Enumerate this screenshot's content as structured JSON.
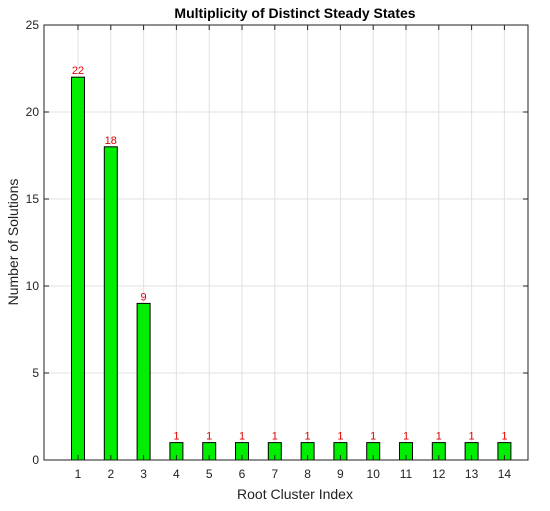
{
  "chart_data": {
    "type": "bar",
    "title": "Multiplicity of Distinct Steady States",
    "xlabel": "Root Cluster Index",
    "ylabel": "Number of Solutions",
    "categories": [
      "1",
      "2",
      "3",
      "4",
      "5",
      "6",
      "7",
      "8",
      "9",
      "10",
      "11",
      "12",
      "13",
      "14"
    ],
    "values": [
      22,
      18,
      9,
      1,
      1,
      1,
      1,
      1,
      1,
      1,
      1,
      1,
      1,
      1
    ],
    "data_labels": [
      "22",
      "18",
      "9",
      "1",
      "1",
      "1",
      "1",
      "1",
      "1",
      "1",
      "1",
      "1",
      "1",
      "1"
    ],
    "ylim": [
      0,
      25
    ],
    "yticks": [
      0,
      5,
      10,
      15,
      20,
      25
    ],
    "grid": true,
    "bar_color": "#00ee00",
    "bar_edge_color": "#000000",
    "data_label_color": "#e00000"
  }
}
